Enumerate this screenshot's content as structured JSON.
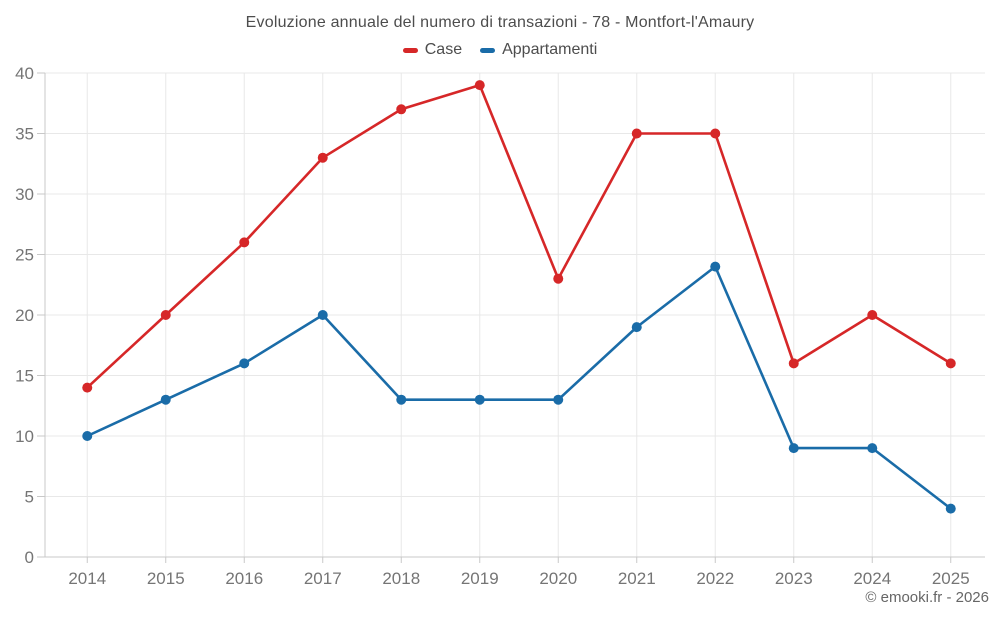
{
  "title": "Evoluzione annuale del numero di transazioni - 78 - Montfort-l'Amaury",
  "copyright": "© emooki.fr - 2026",
  "chart_data": {
    "type": "line",
    "title": "Evoluzione annuale del numero di transazioni - 78 - Montfort-l'Amaury",
    "categories": [
      "2014",
      "2015",
      "2016",
      "2017",
      "2018",
      "2019",
      "2020",
      "2021",
      "2022",
      "2023",
      "2024",
      "2025"
    ],
    "series": [
      {
        "name": "Case",
        "color": "#d62728",
        "values": [
          14,
          20,
          26,
          33,
          37,
          39,
          23,
          35,
          35,
          16,
          20,
          16
        ]
      },
      {
        "name": "Appartamenti",
        "color": "#1a6ca8",
        "values": [
          10,
          13,
          16,
          20,
          13,
          13,
          13,
          19,
          24,
          9,
          9,
          4
        ]
      }
    ],
    "xlabel": "",
    "ylabel": "",
    "ylim": [
      0,
      40
    ],
    "ytick_step": 5,
    "grid": true,
    "legend_position": "top"
  }
}
